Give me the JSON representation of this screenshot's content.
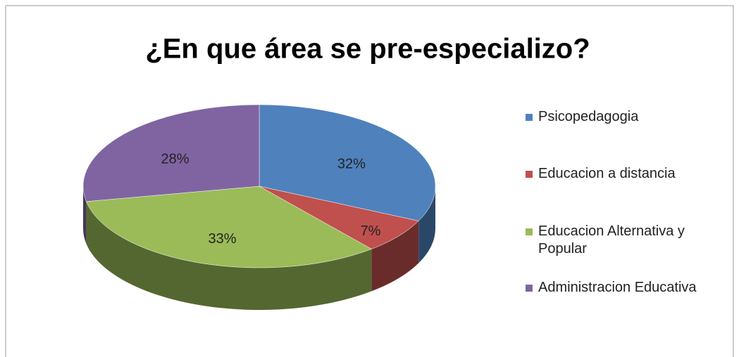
{
  "chart_data": {
    "type": "pie",
    "title": "¿En que área se pre-especializo?",
    "categories": [
      "Psicopedagogia",
      "Educacion a distancia",
      "Educacion Alternativa y Popular",
      "Administracion Educativa"
    ],
    "values": [
      32,
      7,
      33,
      28
    ],
    "value_labels": [
      "32%",
      "7%",
      "33%",
      "28%"
    ],
    "colors": [
      "#4f81bd",
      "#c0504d",
      "#9bbb59",
      "#8064a2"
    ],
    "legend": "right"
  }
}
